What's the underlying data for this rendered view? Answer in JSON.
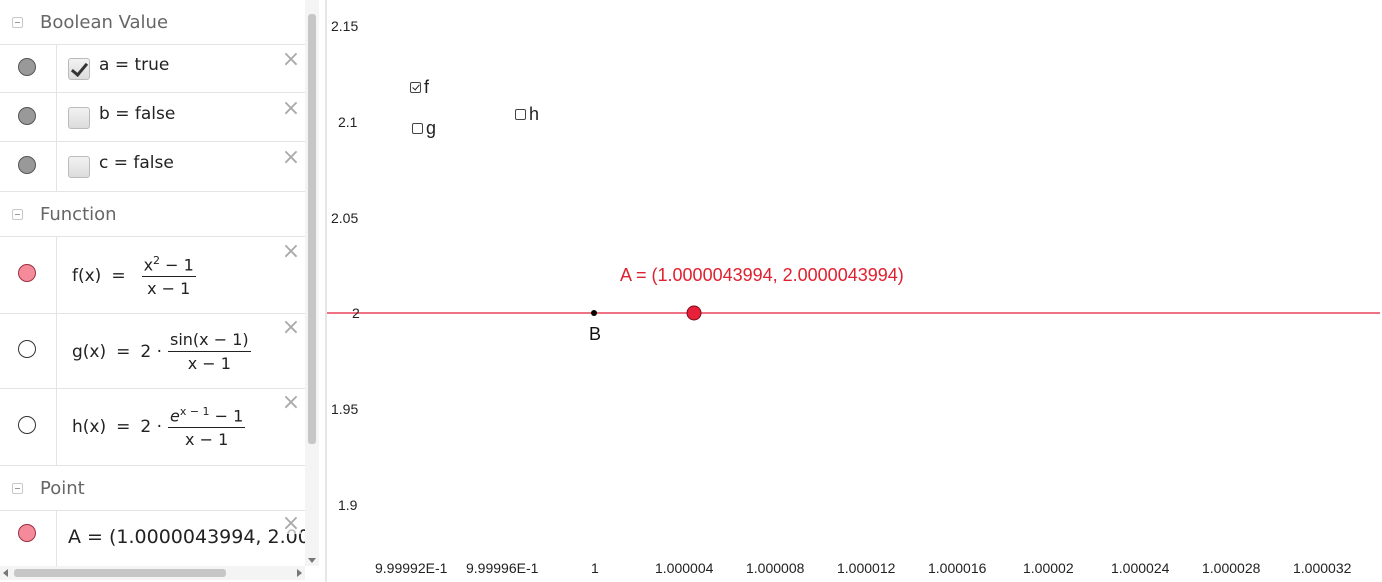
{
  "algebra": {
    "sections": {
      "boolean": "Boolean Value",
      "function": "Function",
      "point": "Point"
    },
    "booleans": [
      {
        "text": "a = true",
        "checked": true
      },
      {
        "text": "b = false",
        "checked": false
      },
      {
        "text": "c = false",
        "checked": false
      }
    ],
    "functions": {
      "f": {
        "lhs": "f(x)",
        "eq": "=",
        "num_base": "x",
        "num_exp": "2",
        "num_rest": " − 1",
        "den": "x − 1"
      },
      "g": {
        "lhs": "g(x)",
        "eq": "=",
        "coef": "2 ·",
        "num": "sin(x − 1)",
        "den": "x − 1"
      },
      "h": {
        "lhs": "h(x)",
        "eq": "=",
        "coef": "2 ·",
        "num_base": "e",
        "num_exp": "x − 1",
        "num_rest": " − 1",
        "den": "x − 1"
      }
    },
    "points": [
      {
        "text": "A = (1.0000043994, 2.0000043994)"
      }
    ],
    "close_glyph": "×"
  },
  "graphics": {
    "y_ticks": [
      "2.15",
      "2.1",
      "2.05",
      "2",
      "1.95",
      "1.9"
    ],
    "x_ticks": [
      "9.99992E-1",
      "9.99996E-1",
      "1",
      "1.000004",
      "1.000008",
      "1.000012",
      "1.000016",
      "1.00002",
      "1.000024",
      "1.000028",
      "1.000032"
    ],
    "checkboxes": [
      {
        "label": "f",
        "checked": true
      },
      {
        "label": "g",
        "checked": false
      },
      {
        "label": "h",
        "checked": false
      }
    ],
    "point_A_label": "A = (1.0000043994, 2.0000043994)",
    "point_B_label": "B",
    "colors": {
      "function_line": "#e8425c",
      "point_A": "#e8203a",
      "label_A": "#e0202f",
      "point_B": "#000000"
    }
  }
}
